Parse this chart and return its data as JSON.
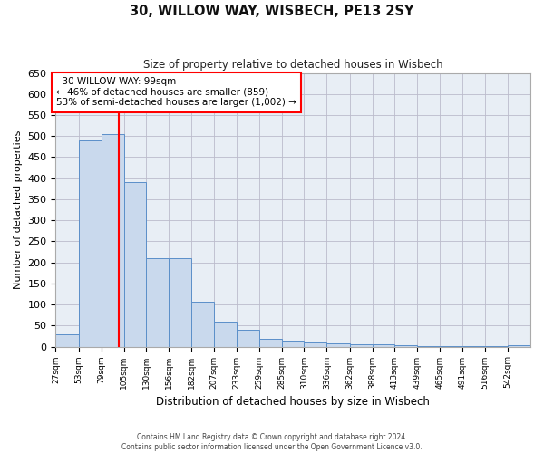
{
  "title": "30, WILLOW WAY, WISBECH, PE13 2SY",
  "subtitle": "Size of property relative to detached houses in Wisbech",
  "xlabel": "Distribution of detached houses by size in Wisbech",
  "ylabel": "Number of detached properties",
  "footer_line1": "Contains HM Land Registry data © Crown copyright and database right 2024.",
  "footer_line2": "Contains public sector information licensed under the Open Government Licence v3.0.",
  "annotation_line1": "30 WILLOW WAY: 99sqm",
  "annotation_line2": "← 46% of detached houses are smaller (859)",
  "annotation_line3": "53% of semi-detached houses are larger (1,002) →",
  "bar_color": "#c9d9ed",
  "bar_edge_color": "#5b8fc9",
  "plot_bg_color": "#e8eef5",
  "red_line_x": 99,
  "categories": [
    "27sqm",
    "53sqm",
    "79sqm",
    "105sqm",
    "130sqm",
    "156sqm",
    "182sqm",
    "207sqm",
    "233sqm",
    "259sqm",
    "285sqm",
    "310sqm",
    "336sqm",
    "362sqm",
    "388sqm",
    "413sqm",
    "439sqm",
    "465sqm",
    "491sqm",
    "516sqm",
    "542sqm"
  ],
  "bin_edges": [
    27,
    53,
    79,
    105,
    130,
    156,
    182,
    207,
    233,
    259,
    285,
    310,
    336,
    362,
    388,
    413,
    439,
    465,
    491,
    516,
    542,
    568
  ],
  "values": [
    30,
    490,
    505,
    390,
    210,
    210,
    106,
    60,
    40,
    18,
    14,
    10,
    8,
    5,
    5,
    4,
    2,
    2,
    1,
    1,
    4
  ],
  "ylim": [
    0,
    650
  ],
  "yticks": [
    0,
    50,
    100,
    150,
    200,
    250,
    300,
    350,
    400,
    450,
    500,
    550,
    600,
    650
  ],
  "background_color": "#ffffff",
  "grid_color": "#bbbbcc"
}
